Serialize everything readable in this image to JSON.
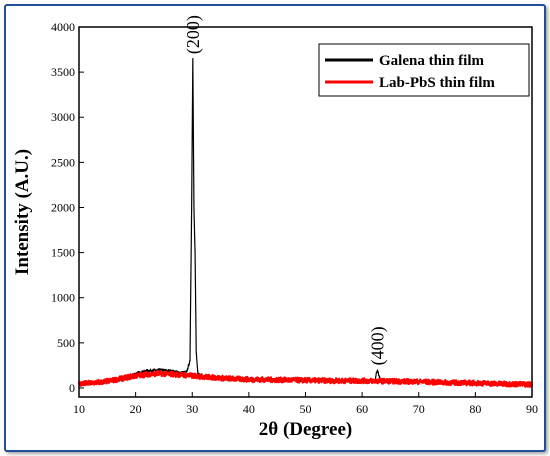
{
  "chart_data": {
    "type": "line",
    "xlabel": "2θ (Degree)",
    "ylabel": "Intensity (A.U.)",
    "xlim": [
      10,
      90
    ],
    "ylim": [
      -100,
      4000
    ],
    "xticks": [
      10,
      20,
      30,
      40,
      50,
      60,
      70,
      80,
      90
    ],
    "yticks": [
      0,
      500,
      1000,
      1500,
      2000,
      2500,
      3000,
      3500,
      4000
    ],
    "grid": false,
    "legend_position": "top-right",
    "series": [
      {
        "name": "Galena thin film",
        "color": "#000000",
        "points": [
          [
            10,
            40
          ],
          [
            12,
            50
          ],
          [
            14,
            60
          ],
          [
            16,
            80
          ],
          [
            18,
            120
          ],
          [
            20,
            160
          ],
          [
            22,
            190
          ],
          [
            24,
            200
          ],
          [
            26,
            190
          ],
          [
            28,
            170
          ],
          [
            29,
            175
          ],
          [
            29.6,
            300
          ],
          [
            29.9,
            2050
          ],
          [
            30.1,
            3650
          ],
          [
            30.3,
            2000
          ],
          [
            30.5,
            1500
          ],
          [
            30.7,
            400
          ],
          [
            31,
            150
          ],
          [
            33,
            120
          ],
          [
            35,
            110
          ],
          [
            38,
            100
          ],
          [
            40,
            95
          ],
          [
            45,
            90
          ],
          [
            50,
            85
          ],
          [
            55,
            80
          ],
          [
            60,
            80
          ],
          [
            62.2,
            85
          ],
          [
            62.7,
            200
          ],
          [
            63.2,
            90
          ],
          [
            65,
            75
          ],
          [
            70,
            70
          ],
          [
            75,
            60
          ],
          [
            80,
            55
          ],
          [
            85,
            45
          ],
          [
            90,
            40
          ]
        ]
      },
      {
        "name": "Lab-PbS thin film",
        "color": "#ff0000",
        "points": [
          [
            10,
            45
          ],
          [
            12,
            55
          ],
          [
            14,
            65
          ],
          [
            16,
            85
          ],
          [
            18,
            110
          ],
          [
            20,
            135
          ],
          [
            22,
            150
          ],
          [
            24,
            160
          ],
          [
            26,
            155
          ],
          [
            28,
            145
          ],
          [
            30,
            135
          ],
          [
            32,
            125
          ],
          [
            35,
            110
          ],
          [
            38,
            100
          ],
          [
            40,
            95
          ],
          [
            45,
            90
          ],
          [
            50,
            85
          ],
          [
            55,
            80
          ],
          [
            60,
            80
          ],
          [
            65,
            75
          ],
          [
            70,
            70
          ],
          [
            75,
            60
          ],
          [
            80,
            55
          ],
          [
            85,
            45
          ],
          [
            90,
            40
          ]
        ]
      }
    ],
    "annotations": [
      {
        "text": "(200)",
        "x": 30.1,
        "y": 3700
      },
      {
        "text": "(400)",
        "x": 62.7,
        "y": 250
      }
    ]
  }
}
